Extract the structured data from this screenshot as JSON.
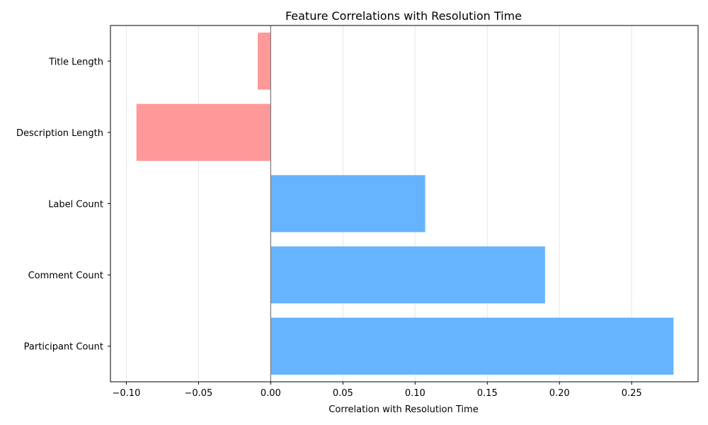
{
  "colors": {
    "positive": "#66b3ff",
    "negative": "#ff9999",
    "grid": "#e6e6e6",
    "zero_line": "#808080",
    "axes": "#000000"
  },
  "chart_data": {
    "type": "bar",
    "orientation": "horizontal",
    "title": "Feature Correlations with Resolution Time",
    "xlabel": "Correlation with Resolution Time",
    "ylabel": "",
    "categories": [
      "Participant Count",
      "Comment Count",
      "Label Count",
      "Description Length",
      "Title Length"
    ],
    "values": [
      0.279,
      0.19,
      0.107,
      -0.093,
      -0.009
    ],
    "xlim": [
      -0.111,
      0.296
    ],
    "xticks": [
      -0.1,
      -0.05,
      0.0,
      0.05,
      0.1,
      0.15,
      0.2,
      0.25
    ],
    "xtick_labels": [
      "−0.10",
      "−0.05",
      "0.00",
      "0.05",
      "0.10",
      "0.15",
      "0.20",
      "0.25"
    ],
    "grid": "vertical",
    "zero_line": true
  }
}
